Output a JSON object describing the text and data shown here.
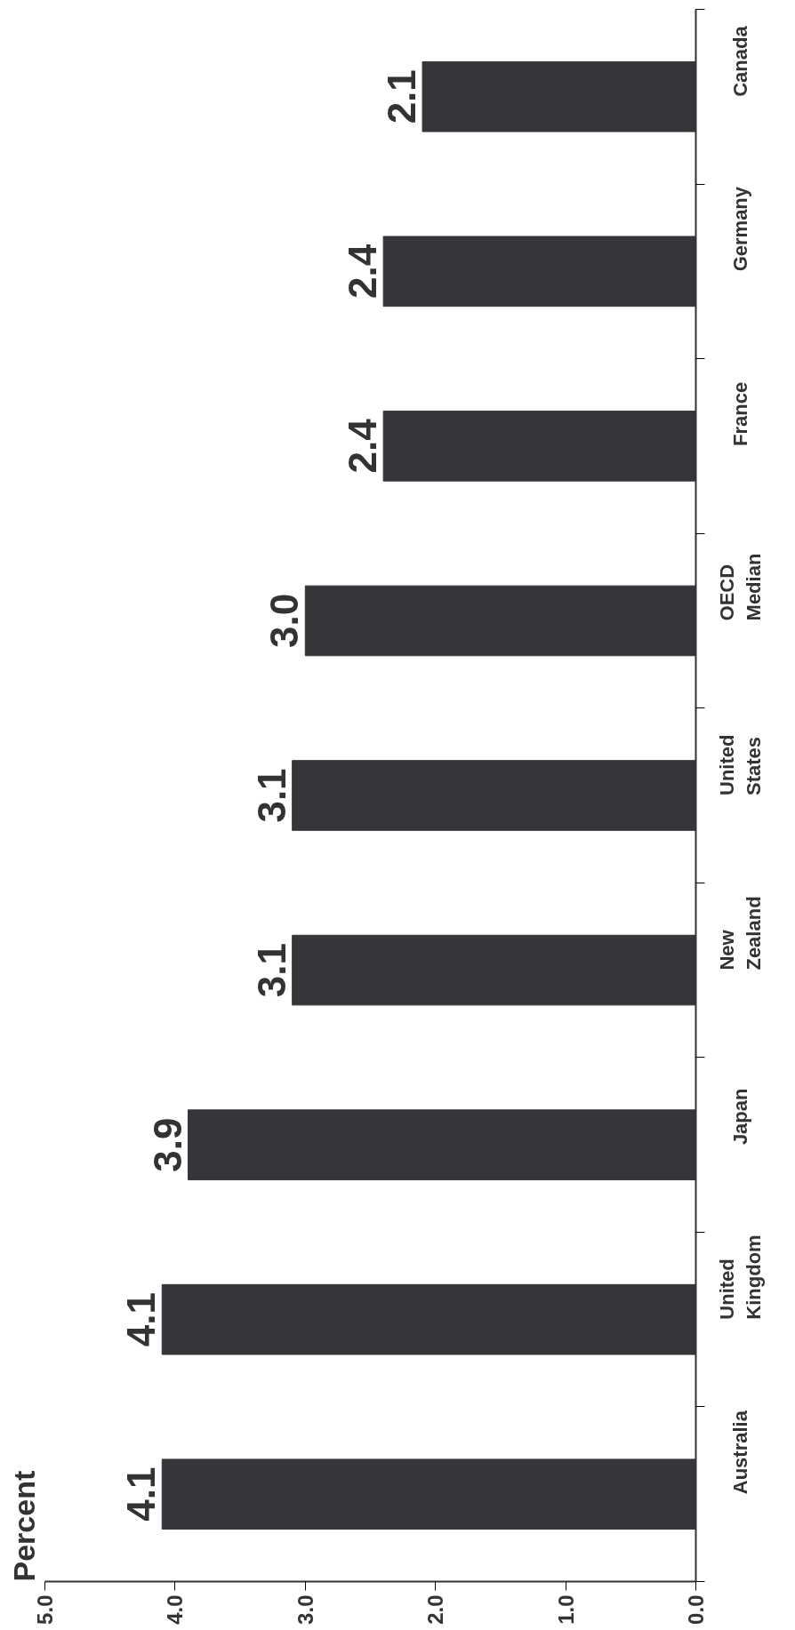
{
  "chart_data": {
    "type": "bar",
    "orientation": "horizontal",
    "ylabel": "Percent",
    "categories": [
      "Canada",
      "Germany",
      "France",
      "OECD\nMedian",
      "United\nStates",
      "New\nZealand",
      "Japan",
      "United\nKingdom",
      "Australia"
    ],
    "values": [
      2.1,
      2.4,
      2.4,
      3.0,
      3.1,
      3.1,
      3.9,
      4.1,
      4.1
    ],
    "value_labels": [
      "2.1",
      "2.4",
      "2.4",
      "3.0",
      "3.1",
      "3.1",
      "3.9",
      "4.1",
      "4.1"
    ],
    "color": "#363539",
    "xlim": [
      5,
      0
    ],
    "xticks": [
      {
        "value": 5,
        "label": "5.0"
      },
      {
        "value": 4,
        "label": "4.0"
      },
      {
        "value": 3,
        "label": "3.0"
      },
      {
        "value": 2,
        "label": "2.0"
      },
      {
        "value": 1,
        "label": "1.0"
      },
      {
        "value": 0,
        "label": "0.0"
      }
    ],
    "grid": false
  }
}
